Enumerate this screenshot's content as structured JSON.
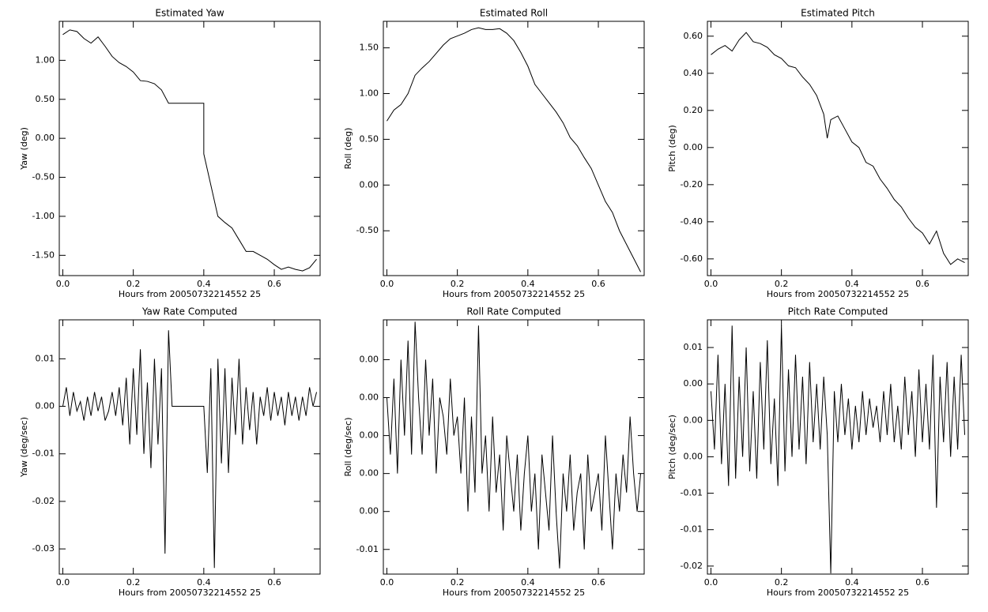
{
  "chart_data": [
    {
      "type": "line",
      "title": "Estimated Yaw",
      "x_label": "Hours from 20050732214552 25",
      "y_label": "Yaw (deg)",
      "color": "#000000",
      "x": [
        0,
        0.02,
        0.04,
        0.06,
        0.08,
        0.1,
        0.12,
        0.14,
        0.16,
        0.18,
        0.2,
        0.22,
        0.24,
        0.26,
        0.28,
        0.3,
        0.32,
        0.34,
        0.36,
        0.38,
        0.4,
        0.4,
        0.42,
        0.44,
        0.46,
        0.48,
        0.5,
        0.52,
        0.54,
        0.56,
        0.58,
        0.6,
        0.62,
        0.64,
        0.66,
        0.68,
        0.7,
        0.72
      ],
      "values": [
        1.33,
        1.39,
        1.37,
        1.28,
        1.22,
        1.3,
        1.18,
        1.05,
        0.97,
        0.92,
        0.85,
        0.74,
        0.73,
        0.7,
        0.62,
        0.45,
        0.45,
        0.45,
        0.45,
        0.45,
        0.45,
        -0.2,
        -0.6,
        -1.0,
        -1.08,
        -1.15,
        -1.3,
        -1.45,
        -1.45,
        -1.5,
        -1.55,
        -1.62,
        -1.68,
        -1.65,
        -1.68,
        -1.7,
        -1.66,
        -1.55
      ],
      "xlim": [
        -0.01,
        0.73
      ],
      "ylim": [
        -1.76,
        1.5
      ],
      "xticks": [
        {
          "value": 0,
          "label": "0.0"
        },
        {
          "value": 0.2,
          "label": "0.2"
        },
        {
          "value": 0.4,
          "label": "0.4"
        },
        {
          "value": 0.6,
          "label": "0.6"
        }
      ],
      "yticks": [
        {
          "value": 1,
          "label": "1.00"
        },
        {
          "value": 0.5,
          "label": "0.50"
        },
        {
          "value": 0,
          "label": "0.00"
        },
        {
          "value": -0.5,
          "label": "-0.50"
        },
        {
          "value": -1,
          "label": "-1.00"
        },
        {
          "value": -1.5,
          "label": "-1.50"
        }
      ]
    },
    {
      "type": "line",
      "title": "Estimated Roll",
      "x_label": "Hours from 20050732214552 25",
      "y_label": "Roll (deg)",
      "color": "#000000",
      "x": [
        0,
        0.02,
        0.04,
        0.06,
        0.08,
        0.1,
        0.12,
        0.14,
        0.16,
        0.18,
        0.2,
        0.22,
        0.24,
        0.26,
        0.28,
        0.3,
        0.32,
        0.34,
        0.36,
        0.38,
        0.4,
        0.42,
        0.44,
        0.46,
        0.48,
        0.5,
        0.52,
        0.54,
        0.56,
        0.58,
        0.6,
        0.62,
        0.64,
        0.66,
        0.68,
        0.7,
        0.72
      ],
      "values": [
        0.7,
        0.82,
        0.88,
        1.0,
        1.2,
        1.28,
        1.35,
        1.44,
        1.53,
        1.6,
        1.63,
        1.66,
        1.7,
        1.72,
        1.7,
        1.7,
        1.71,
        1.66,
        1.58,
        1.45,
        1.3,
        1.1,
        1.0,
        0.9,
        0.8,
        0.68,
        0.52,
        0.43,
        0.3,
        0.18,
        0.0,
        -0.18,
        -0.3,
        -0.5,
        -0.65,
        -0.8,
        -0.95
      ],
      "xlim": [
        -0.01,
        0.73
      ],
      "ylim": [
        -0.99,
        1.79
      ],
      "xticks": [
        {
          "value": 0,
          "label": "0.0"
        },
        {
          "value": 0.2,
          "label": "0.2"
        },
        {
          "value": 0.4,
          "label": "0.4"
        },
        {
          "value": 0.6,
          "label": "0.6"
        }
      ],
      "yticks": [
        {
          "value": 1.5,
          "label": "1.50"
        },
        {
          "value": 1,
          "label": "1.00"
        },
        {
          "value": 0.5,
          "label": "0.50"
        },
        {
          "value": 0,
          "label": "0.00"
        },
        {
          "value": -0.5,
          "label": "-0.50"
        }
      ]
    },
    {
      "type": "line",
      "title": "Estimated Pitch",
      "x_label": "Hours from 20050732214552 25",
      "y_label": "Pitch (deg)",
      "color": "#000000",
      "x": [
        0,
        0.02,
        0.04,
        0.06,
        0.08,
        0.1,
        0.12,
        0.14,
        0.16,
        0.18,
        0.2,
        0.22,
        0.24,
        0.26,
        0.28,
        0.3,
        0.32,
        0.33,
        0.34,
        0.36,
        0.38,
        0.4,
        0.42,
        0.44,
        0.46,
        0.48,
        0.5,
        0.52,
        0.54,
        0.56,
        0.58,
        0.6,
        0.62,
        0.64,
        0.66,
        0.68,
        0.7,
        0.72
      ],
      "values": [
        0.5,
        0.53,
        0.55,
        0.52,
        0.58,
        0.62,
        0.57,
        0.56,
        0.54,
        0.5,
        0.48,
        0.44,
        0.43,
        0.38,
        0.34,
        0.28,
        0.18,
        0.05,
        0.15,
        0.17,
        0.1,
        0.03,
        0.0,
        -0.08,
        -0.1,
        -0.17,
        -0.22,
        -0.28,
        -0.32,
        -0.38,
        -0.43,
        -0.46,
        -0.52,
        -0.45,
        -0.57,
        -0.63,
        -0.6,
        -0.62
      ],
      "xlim": [
        -0.01,
        0.73
      ],
      "ylim": [
        -0.69,
        0.68
      ],
      "xticks": [
        {
          "value": 0,
          "label": "0.0"
        },
        {
          "value": 0.2,
          "label": "0.2"
        },
        {
          "value": 0.4,
          "label": "0.4"
        },
        {
          "value": 0.6,
          "label": "0.6"
        }
      ],
      "yticks": [
        {
          "value": 0.6,
          "label": "0.60"
        },
        {
          "value": 0.4,
          "label": "0.40"
        },
        {
          "value": 0.2,
          "label": "0.20"
        },
        {
          "value": 0,
          "label": "0.00"
        },
        {
          "value": -0.2,
          "label": "-0.20"
        },
        {
          "value": -0.4,
          "label": "-0.40"
        },
        {
          "value": -0.6,
          "label": "-0.60"
        }
      ]
    },
    {
      "type": "line",
      "title": "Yaw Rate Computed",
      "x_label": "Hours from 20050732214552 25",
      "y_label": "Yaw (deg/sec)",
      "color": "#000000",
      "x": [
        0,
        0.01,
        0.02,
        0.03,
        0.04,
        0.05,
        0.06,
        0.07,
        0.08,
        0.09,
        0.1,
        0.11,
        0.12,
        0.13,
        0.14,
        0.15,
        0.16,
        0.17,
        0.18,
        0.19,
        0.2,
        0.21,
        0.22,
        0.23,
        0.24,
        0.25,
        0.26,
        0.27,
        0.28,
        0.29,
        0.3,
        0.31,
        0.32,
        0.33,
        0.34,
        0.35,
        0.36,
        0.37,
        0.38,
        0.39,
        0.4,
        0.41,
        0.42,
        0.43,
        0.44,
        0.45,
        0.46,
        0.47,
        0.48,
        0.49,
        0.5,
        0.51,
        0.52,
        0.53,
        0.54,
        0.55,
        0.56,
        0.57,
        0.58,
        0.59,
        0.6,
        0.61,
        0.62,
        0.63,
        0.64,
        0.65,
        0.66,
        0.67,
        0.68,
        0.69,
        0.7,
        0.71,
        0.72
      ],
      "values": [
        0.0,
        0.004,
        -0.002,
        0.003,
        -0.001,
        0.001,
        -0.003,
        0.002,
        -0.002,
        0.003,
        -0.001,
        0.002,
        -0.003,
        -0.001,
        0.003,
        -0.002,
        0.004,
        -0.004,
        0.006,
        -0.008,
        0.008,
        -0.006,
        0.012,
        -0.01,
        0.005,
        -0.013,
        0.01,
        -0.008,
        0.008,
        -0.031,
        0.016,
        0.0,
        0.0,
        0.0,
        0.0,
        0.0,
        0.0,
        0.0,
        0.0,
        0.0,
        0.0,
        -0.014,
        0.008,
        -0.034,
        0.01,
        -0.012,
        0.008,
        -0.014,
        0.006,
        -0.006,
        0.01,
        -0.008,
        0.004,
        -0.005,
        0.003,
        -0.008,
        0.002,
        -0.002,
        0.004,
        -0.003,
        0.003,
        -0.002,
        0.002,
        -0.004,
        0.003,
        -0.002,
        0.002,
        -0.003,
        0.002,
        -0.002,
        0.004,
        0.0,
        0.003
      ],
      "xlim": [
        -0.01,
        0.73
      ],
      "ylim": [
        -0.0353,
        0.0182
      ],
      "xticks": [
        {
          "value": 0,
          "label": "0.0"
        },
        {
          "value": 0.2,
          "label": "0.2"
        },
        {
          "value": 0.4,
          "label": "0.4"
        },
        {
          "value": 0.6,
          "label": "0.6"
        }
      ],
      "yticks": [
        {
          "value": 0.01,
          "label": "0.01"
        },
        {
          "value": 0,
          "label": "0.00"
        },
        {
          "value": -0.01,
          "label": "-0.01"
        },
        {
          "value": -0.02,
          "label": "-0.02"
        },
        {
          "value": -0.03,
          "label": "-0.03"
        }
      ]
    },
    {
      "type": "line",
      "title": "Roll Rate Computed",
      "x_label": "Hours from 20050732214552 25",
      "y_label": "Roll (deg/sec)",
      "color": "#000000",
      "x": [
        0,
        0.01,
        0.02,
        0.03,
        0.04,
        0.05,
        0.06,
        0.07,
        0.08,
        0.09,
        0.1,
        0.11,
        0.12,
        0.13,
        0.14,
        0.15,
        0.16,
        0.17,
        0.18,
        0.19,
        0.2,
        0.21,
        0.22,
        0.23,
        0.24,
        0.25,
        0.26,
        0.27,
        0.28,
        0.29,
        0.3,
        0.31,
        0.32,
        0.33,
        0.34,
        0.35,
        0.36,
        0.37,
        0.38,
        0.39,
        0.4,
        0.41,
        0.42,
        0.43,
        0.44,
        0.45,
        0.46,
        0.47,
        0.48,
        0.49,
        0.5,
        0.51,
        0.52,
        0.53,
        0.54,
        0.55,
        0.56,
        0.57,
        0.58,
        0.59,
        0.6,
        0.61,
        0.62,
        0.63,
        0.64,
        0.65,
        0.66,
        0.67,
        0.68,
        0.69,
        0.7,
        0.71,
        0.72
      ],
      "values": [
        0.002,
        -0.001,
        0.003,
        -0.002,
        0.004,
        0.0,
        0.005,
        -0.001,
        0.006,
        0.002,
        -0.001,
        0.004,
        0.0,
        0.003,
        -0.002,
        0.002,
        0.001,
        -0.001,
        0.003,
        0.0,
        0.001,
        -0.002,
        0.002,
        -0.004,
        0.001,
        -0.003,
        0.0058,
        -0.002,
        0.0,
        -0.004,
        0.001,
        -0.003,
        -0.001,
        -0.005,
        0.0,
        -0.002,
        -0.004,
        -0.001,
        -0.005,
        -0.002,
        0.0,
        -0.004,
        -0.002,
        -0.006,
        -0.001,
        -0.003,
        -0.005,
        0.0,
        -0.004,
        -0.007,
        -0.002,
        -0.004,
        -0.001,
        -0.005,
        -0.003,
        -0.002,
        -0.006,
        -0.001,
        -0.004,
        -0.003,
        -0.002,
        -0.005,
        0.0,
        -0.003,
        -0.006,
        -0.002,
        -0.004,
        -0.001,
        -0.003,
        0.001,
        -0.002,
        -0.004,
        -0.002
      ],
      "xlim": [
        -0.01,
        0.73
      ],
      "ylim": [
        -0.0073,
        0.0061
      ],
      "xticks": [
        {
          "value": 0,
          "label": "0.0"
        },
        {
          "value": 0.2,
          "label": "0.2"
        },
        {
          "value": 0.4,
          "label": "0.4"
        },
        {
          "value": 0.6,
          "label": "0.6"
        }
      ],
      "yticks": [
        {
          "value": 0.004,
          "label": "0.00"
        },
        {
          "value": 0.002,
          "label": "0.00"
        },
        {
          "value": 0,
          "label": "0.00"
        },
        {
          "value": -0.002,
          "label": "0.00"
        },
        {
          "value": -0.004,
          "label": "0.00"
        },
        {
          "value": -0.006,
          "label": "-0.01"
        }
      ]
    },
    {
      "type": "line",
      "title": "Pitch Rate Computed",
      "x_label": "Hours from 20050732214552 25",
      "y_label": "Pitch (deg/sec)",
      "color": "#000000",
      "x": [
        0,
        0.01,
        0.02,
        0.03,
        0.04,
        0.05,
        0.06,
        0.07,
        0.08,
        0.09,
        0.1,
        0.11,
        0.12,
        0.13,
        0.14,
        0.15,
        0.16,
        0.17,
        0.18,
        0.19,
        0.2,
        0.21,
        0.22,
        0.23,
        0.24,
        0.25,
        0.26,
        0.27,
        0.28,
        0.29,
        0.3,
        0.31,
        0.32,
        0.33,
        0.34,
        0.35,
        0.36,
        0.37,
        0.38,
        0.39,
        0.4,
        0.41,
        0.42,
        0.43,
        0.44,
        0.45,
        0.46,
        0.47,
        0.48,
        0.49,
        0.5,
        0.51,
        0.52,
        0.53,
        0.54,
        0.55,
        0.56,
        0.57,
        0.58,
        0.59,
        0.6,
        0.61,
        0.62,
        0.63,
        0.64,
        0.65,
        0.66,
        0.67,
        0.68,
        0.69,
        0.7,
        0.71,
        0.72
      ],
      "values": [
        0.004,
        -0.004,
        0.009,
        -0.006,
        0.005,
        -0.009,
        0.013,
        -0.008,
        0.006,
        -0.005,
        0.01,
        -0.007,
        0.004,
        -0.008,
        0.008,
        -0.004,
        0.011,
        -0.006,
        0.003,
        -0.009,
        0.013,
        -0.007,
        0.007,
        -0.005,
        0.009,
        -0.004,
        0.006,
        -0.006,
        0.008,
        -0.003,
        0.005,
        -0.004,
        0.006,
        -0.002,
        -0.021,
        0.004,
        -0.003,
        0.005,
        -0.002,
        0.003,
        -0.004,
        0.002,
        -0.003,
        0.004,
        -0.002,
        0.003,
        -0.001,
        0.002,
        -0.003,
        0.004,
        -0.002,
        0.005,
        -0.003,
        0.002,
        -0.004,
        0.006,
        -0.002,
        0.004,
        -0.005,
        0.007,
        -0.003,
        0.005,
        -0.004,
        0.009,
        -0.012,
        0.006,
        -0.003,
        0.008,
        -0.005,
        0.006,
        -0.004,
        0.009,
        -0.002
      ],
      "xlim": [
        -0.01,
        0.73
      ],
      "ylim": [
        -0.0211,
        0.0138
      ],
      "xticks": [
        {
          "value": 0,
          "label": "0.0"
        },
        {
          "value": 0.2,
          "label": "0.2"
        },
        {
          "value": 0.4,
          "label": "0.4"
        },
        {
          "value": 0.6,
          "label": "0.6"
        }
      ],
      "yticks": [
        {
          "value": 0.01,
          "label": "0.01"
        },
        {
          "value": 0.005,
          "label": "0.00"
        },
        {
          "value": 0,
          "label": "0.00"
        },
        {
          "value": -0.005,
          "label": "0.00"
        },
        {
          "value": -0.01,
          "label": "-0.01"
        },
        {
          "value": -0.015,
          "label": "-0.01"
        },
        {
          "value": -0.02,
          "label": "-0.02"
        }
      ]
    }
  ]
}
